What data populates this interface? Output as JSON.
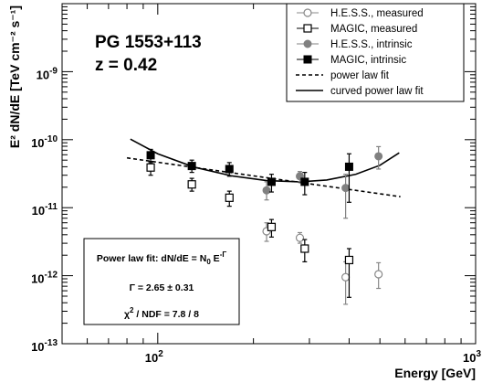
{
  "chart_data": {
    "type": "scatter",
    "title_lines": [
      "PG 1553+113",
      "z = 0.42"
    ],
    "xlabel": "Energy [GeV]",
    "ylabel": "E² dN/dE [TeV cm⁻² s⁻¹]",
    "x_scale": "log",
    "y_scale": "log",
    "xlim": [
      50,
      1000
    ],
    "ylim": [
      1e-13,
      1e-08
    ],
    "x_major_ticks": [
      {
        "value": 100,
        "base": "10",
        "exp": "2"
      },
      {
        "value": 1000,
        "base": "10",
        "exp": "3"
      }
    ],
    "y_major_ticks": [
      {
        "value": 1e-13,
        "base": "10",
        "exp": "-13"
      },
      {
        "value": 1e-12,
        "base": "10",
        "exp": "-12"
      },
      {
        "value": 1e-11,
        "base": "10",
        "exp": "-11"
      },
      {
        "value": 1e-10,
        "base": "10",
        "exp": "-10"
      },
      {
        "value": 1e-09,
        "base": "10",
        "exp": "-9"
      }
    ],
    "legend_position": "top-right",
    "series": [
      {
        "name": "H.E.S.S., measured",
        "marker": "open-circle",
        "color": "#888888",
        "points": [
          {
            "x": 220,
            "y": 4.5e-12,
            "ylo": 3.2e-12,
            "yhi": 6e-12
          },
          {
            "x": 280,
            "y": 3.6e-12,
            "ylo": 3e-12,
            "yhi": 4.3e-12
          },
          {
            "x": 390,
            "y": 9.5e-13,
            "ylo": 3.8e-13,
            "yhi": 1.6e-12
          },
          {
            "x": 495,
            "y": 1.05e-12,
            "ylo": 6.5e-13,
            "yhi": 1.55e-12
          }
        ]
      },
      {
        "name": "MAGIC, measured",
        "marker": "open-square",
        "color": "#000000",
        "points": [
          {
            "x": 95,
            "y": 3.9e-11,
            "ylo": 3e-11,
            "yhi": 4.8e-11
          },
          {
            "x": 128,
            "y": 2.2e-11,
            "ylo": 1.75e-11,
            "yhi": 2.7e-11
          },
          {
            "x": 168,
            "y": 1.4e-11,
            "ylo": 1.05e-11,
            "yhi": 1.75e-11
          },
          {
            "x": 228,
            "y": 5.2e-12,
            "ylo": 3.7e-12,
            "yhi": 6.7e-12
          },
          {
            "x": 290,
            "y": 2.5e-12,
            "ylo": 1.6e-12,
            "yhi": 3.4e-12
          },
          {
            "x": 400,
            "y": 1.7e-12,
            "ylo": 4.8e-13,
            "yhi": 2.5e-12
          }
        ]
      },
      {
        "name": "H.E.S.S., intrinsic",
        "marker": "filled-circle",
        "color": "#808080",
        "points": [
          {
            "x": 220,
            "y": 1.8e-11,
            "ylo": 1.3e-11,
            "yhi": 2.4e-11
          },
          {
            "x": 280,
            "y": 2.9e-11,
            "ylo": 2.4e-11,
            "yhi": 3.4e-11
          },
          {
            "x": 390,
            "y": 1.95e-11,
            "ylo": 7e-12,
            "yhi": 3.1e-11
          },
          {
            "x": 495,
            "y": 5.7e-11,
            "ylo": 3.7e-11,
            "yhi": 7.9e-11
          }
        ]
      },
      {
        "name": "MAGIC, intrinsic",
        "marker": "filled-square",
        "color": "#000000",
        "points": [
          {
            "x": 95,
            "y": 5.9e-11,
            "ylo": 4.6e-11,
            "yhi": 7.2e-11
          },
          {
            "x": 128,
            "y": 4.1e-11,
            "ylo": 3.3e-11,
            "yhi": 5e-11
          },
          {
            "x": 168,
            "y": 3.7e-11,
            "ylo": 2.9e-11,
            "yhi": 4.6e-11
          },
          {
            "x": 228,
            "y": 2.4e-11,
            "ylo": 1.7e-11,
            "yhi": 3.1e-11
          },
          {
            "x": 290,
            "y": 2.4e-11,
            "ylo": 1.55e-11,
            "yhi": 3.3e-11
          },
          {
            "x": 400,
            "y": 4e-11,
            "ylo": 1.2e-11,
            "yhi": 6.2e-11
          }
        ]
      }
    ],
    "fits": [
      {
        "name": "power law fit",
        "style": "dashed",
        "x_range": [
          80,
          580
        ],
        "points": [
          [
            80,
            5.4e-11
          ],
          [
            580,
            1.45e-11
          ]
        ]
      },
      {
        "name": "curved power law fit",
        "style": "solid",
        "x_range": [
          82,
          575
        ],
        "points": [
          [
            82,
            1.02e-10
          ],
          [
            100,
            6.2e-11
          ],
          [
            130,
            3.95e-11
          ],
          [
            170,
            2.95e-11
          ],
          [
            220,
            2.5e-11
          ],
          [
            280,
            2.4e-11
          ],
          [
            340,
            2.55e-11
          ],
          [
            420,
            3.1e-11
          ],
          [
            500,
            4.2e-11
          ],
          [
            575,
            6.4e-11
          ]
        ]
      }
    ],
    "annotation_box": {
      "line1_text": "Power law fit: dN/dE = N",
      "line1_sub": "0",
      "line1_tail": " E",
      "line1_sup": "-Γ",
      "line2": "Γ = 2.65 ± 0.31",
      "line3_prefix": "χ",
      "line3_sup": "2",
      "line3_tail": " / NDF = 7.8 / 8"
    }
  }
}
